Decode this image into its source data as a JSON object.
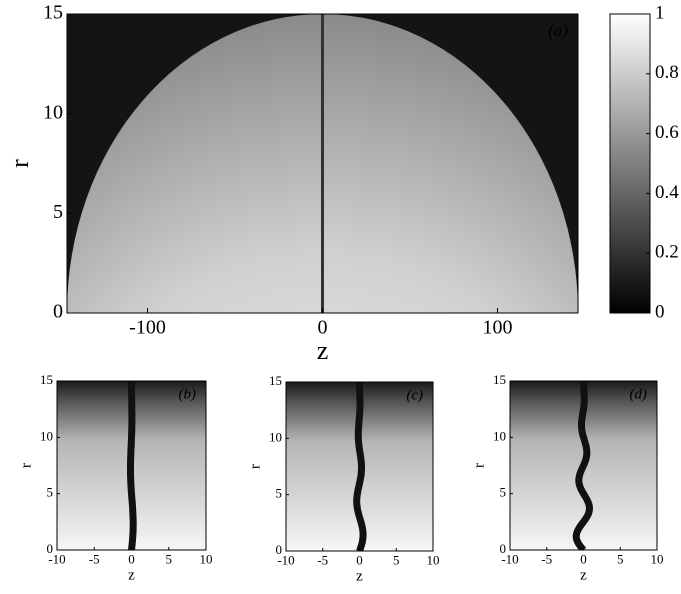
{
  "chart_data": [
    {
      "type": "heatmap",
      "panel_label": "(a)",
      "xlabel": "z",
      "ylabel": "r",
      "colormap": "gray",
      "xlim": [
        -146,
        146
      ],
      "xticks": [
        -100,
        0,
        100
      ],
      "ylim": [
        0,
        15
      ],
      "yticks": [
        0,
        5,
        10,
        15
      ],
      "colorbar": {
        "lim": [
          0,
          1
        ],
        "ticks": [
          0,
          0.2,
          0.4,
          0.6,
          0.8,
          1
        ]
      }
    },
    {
      "type": "heatmap",
      "panel_label": "(b)",
      "xlabel": "z",
      "ylabel": "r",
      "colormap": "gray",
      "xlim": [
        -10,
        10
      ],
      "xticks": [
        -10,
        -5,
        0,
        5,
        10
      ],
      "ylim": [
        0,
        15
      ],
      "yticks": [
        0,
        5,
        10,
        15
      ]
    },
    {
      "type": "heatmap",
      "panel_label": "(c)",
      "xlabel": "z",
      "ylabel": "r",
      "colormap": "gray",
      "xlim": [
        -10,
        10
      ],
      "xticks": [
        -10,
        -5,
        0,
        5,
        10
      ],
      "ylim": [
        0,
        15
      ],
      "yticks": [
        0,
        5,
        10,
        15
      ]
    },
    {
      "type": "heatmap",
      "panel_label": "(d)",
      "xlabel": "z",
      "ylabel": "r",
      "colormap": "gray",
      "xlim": [
        -10,
        10
      ],
      "xticks": [
        -10,
        -5,
        0,
        5,
        10
      ],
      "ylim": [
        0,
        15
      ],
      "yticks": [
        0,
        5,
        10,
        15
      ]
    }
  ]
}
